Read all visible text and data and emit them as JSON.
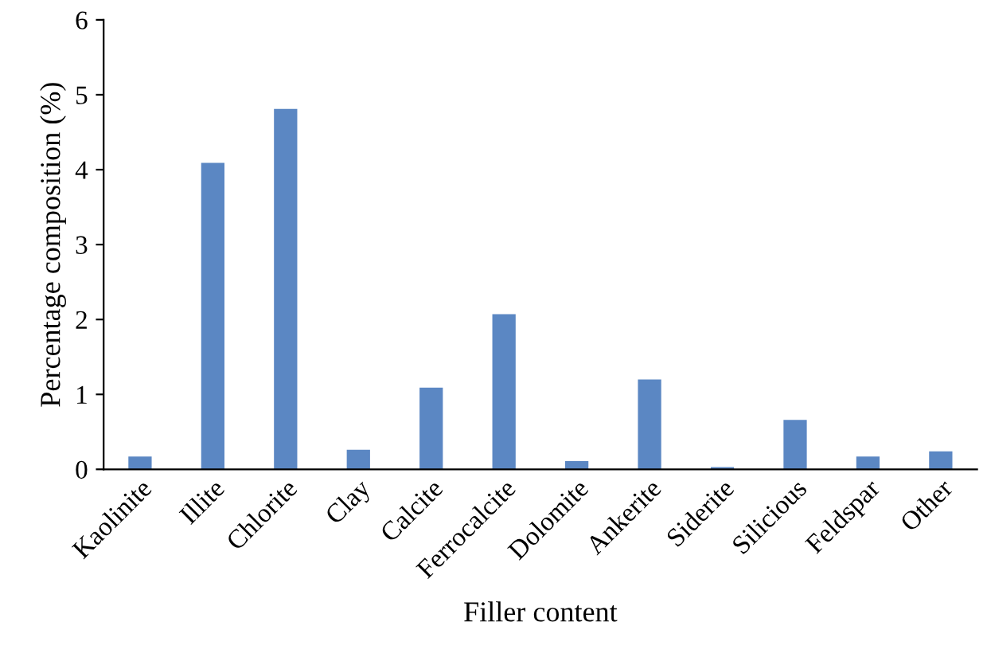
{
  "chart_data": {
    "type": "bar",
    "xlabel": "Filler content",
    "ylabel": "Percentage composition (%)",
    "categories": [
      "Kaolinite",
      "Illite",
      "Chlorite",
      "Clay",
      "Calcite",
      "Ferrocalcite",
      "Dolomite",
      "Ankerite",
      "Siderite",
      "Silicious",
      "Feldspar",
      "Other"
    ],
    "values": [
      0.17,
      4.09,
      4.81,
      0.26,
      1.09,
      2.07,
      0.11,
      1.2,
      0.03,
      0.66,
      0.17,
      0.24
    ],
    "color": "#5b87c3",
    "ylim": [
      0,
      6
    ],
    "yticks": [
      0,
      1,
      2,
      3,
      4,
      5,
      6
    ],
    "grid": false
  }
}
